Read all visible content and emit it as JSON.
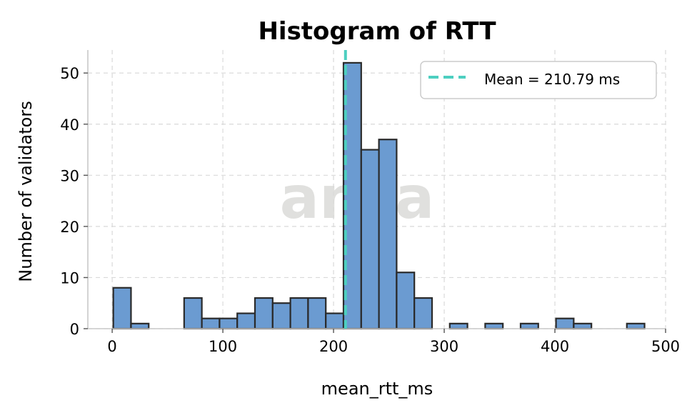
{
  "chart_data": {
    "type": "bar",
    "title": "Histogram of RTT",
    "xlabel": "mean_rtt_ms",
    "ylabel": "Number of validators",
    "xlim": [
      -22,
      500
    ],
    "ylim": [
      0,
      54.5
    ],
    "xticks": [
      0,
      100,
      200,
      300,
      400,
      500
    ],
    "yticks": [
      0,
      10,
      20,
      30,
      40,
      50
    ],
    "grid": true,
    "bin_edges": [
      1,
      17,
      33,
      49,
      65,
      81,
      97,
      113,
      129,
      145,
      161,
      177,
      193,
      209,
      225,
      241,
      257,
      273,
      289,
      305,
      321,
      337,
      353,
      369,
      385,
      401,
      417,
      433,
      449,
      465,
      481
    ],
    "values": [
      8,
      1,
      0,
      0,
      6,
      2,
      2,
      3,
      6,
      5,
      6,
      6,
      3,
      52,
      35,
      37,
      11,
      6,
      0,
      1,
      0,
      1,
      0,
      1,
      0,
      2,
      1,
      0,
      0,
      1
    ],
    "mean": 210.79,
    "legend": {
      "position": "top-right",
      "entries": [
        {
          "label": "Mean = 210.79 ms",
          "color": "#4dcfc0",
          "style": "dashed"
        }
      ]
    },
    "colors": {
      "bar_fill": "#6b9bd1",
      "bar_edge": "#2a2a2a",
      "mean_line": "#4dcfc0"
    }
  },
  "watermark": "anza"
}
